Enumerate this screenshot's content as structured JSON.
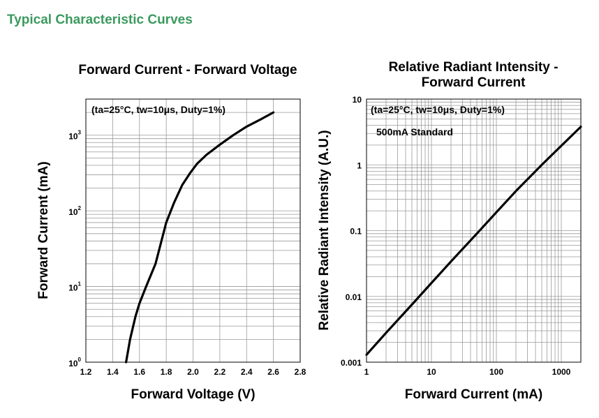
{
  "page": {
    "title": "Typical Characteristic Curves",
    "title_color": "#3c9a5f"
  },
  "chart_data": [
    {
      "type": "line",
      "title": "Forward Current - Forward Voltage",
      "xlabel": "Forward Voltage (V)",
      "ylabel": "Forward Current (mA)",
      "annotation": "(ta=25°C, tw=10μs, Duty=1%)",
      "xscale": "linear",
      "yscale": "log",
      "xlim": [
        1.2,
        2.8
      ],
      "ylim": [
        1,
        3000
      ],
      "x_ticks": [
        "1.2",
        "1.4",
        "1.6",
        "1.8",
        "2.0",
        "2.2",
        "2.4",
        "2.6",
        "2.8"
      ],
      "y_ticks": [
        {
          "base": "10",
          "exp": "0"
        },
        {
          "base": "10",
          "exp": "1"
        },
        {
          "base": "10",
          "exp": "2"
        },
        {
          "base": "10",
          "exp": "3"
        }
      ],
      "grid": true,
      "series": [
        {
          "x": [
            1.5,
            1.53,
            1.57,
            1.6,
            1.65,
            1.72,
            1.8,
            1.86,
            1.92,
            1.98,
            2.03,
            2.1,
            2.2,
            2.3,
            2.4,
            2.5,
            2.6
          ],
          "y": [
            1,
            2,
            4,
            6,
            10,
            20,
            70,
            130,
            220,
            320,
            420,
            550,
            750,
            1000,
            1300,
            1600,
            2000
          ]
        }
      ]
    },
    {
      "type": "line",
      "title": [
        "Relative Radiant Intensity -",
        "Forward Current"
      ],
      "xlabel": "Forward Current (mA)",
      "ylabel": "Relative Radiant Intensity (A.U.)",
      "annotation": "(ta=25°C, tw=10μs, Duty=1%)",
      "annotation2": "500mA Standard",
      "xscale": "log",
      "yscale": "log",
      "xlim": [
        1,
        2000
      ],
      "ylim": [
        0.001,
        10
      ],
      "x_ticks": [
        "1",
        "10",
        "100",
        "1000"
      ],
      "y_ticks": [
        "0.001",
        "0.01",
        "0.1",
        "1",
        "10"
      ],
      "grid": true,
      "series": [
        {
          "x": [
            1,
            2,
            5,
            10,
            20,
            50,
            100,
            200,
            500,
            1000,
            2000
          ],
          "y": [
            0.0013,
            0.0028,
            0.0075,
            0.016,
            0.034,
            0.09,
            0.19,
            0.4,
            1.0,
            1.95,
            3.8
          ]
        }
      ]
    }
  ]
}
